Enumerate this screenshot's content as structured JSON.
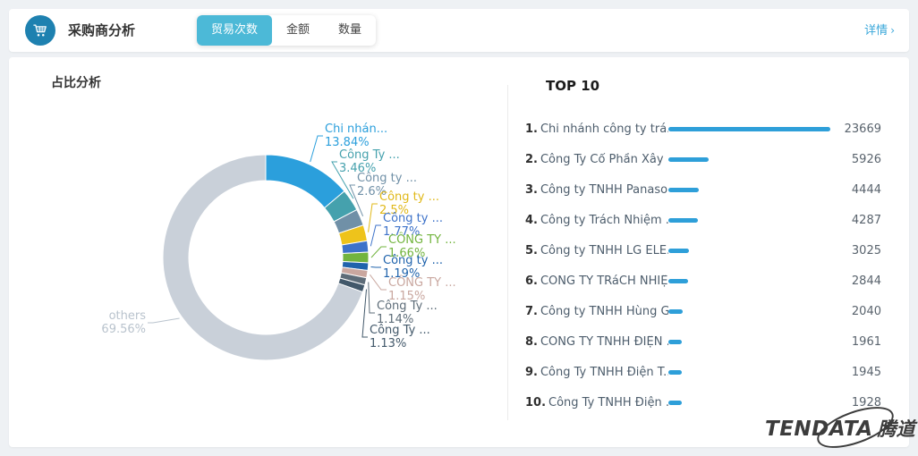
{
  "header": {
    "title": "采购商分析",
    "tabs": [
      {
        "label": "贸易次数",
        "active": true
      },
      {
        "label": "金额",
        "active": false
      },
      {
        "label": "数量",
        "active": false
      }
    ],
    "detail_link": "详情",
    "chevron": "›"
  },
  "left_panel": {
    "title": "占比分析"
  },
  "colors": {
    "accent_blue": "#2e9fd9",
    "tab_active_bg": "#4cb9d7",
    "icon_circle_bg": "#1e81b0",
    "detail_link": "#39a7da",
    "bar": "#2e9fd9"
  },
  "chart_data": {
    "type": "pie",
    "title": "占比分析",
    "legend_position": "callout-labels",
    "unit": "percent of trade count",
    "slices": [
      {
        "label": "Chi nhán...",
        "pct": 13.84,
        "display": "13.84%",
        "color": "#2b9fdc"
      },
      {
        "label": "Công Ty ...",
        "pct": 3.46,
        "display": "3.46%",
        "color": "#45a1ad"
      },
      {
        "label": "Công ty ...",
        "pct": 2.6,
        "display": "2.6%",
        "color": "#7090a7"
      },
      {
        "label": "Công ty ...",
        "pct": 2.5,
        "display": "2.5%",
        "color": "#eec31b",
        "text_color": "#e0b818"
      },
      {
        "label": "Công ty ...",
        "pct": 1.77,
        "display": "1.77%",
        "color": "#3d72c9"
      },
      {
        "label": "CÔNG TY ...",
        "pct": 1.66,
        "display": "1.66%",
        "color": "#72b43e"
      },
      {
        "label": "Công ty ...",
        "pct": 1.19,
        "display": "1.19%",
        "color": "#1f63ac"
      },
      {
        "label": "CÔNG TY ...",
        "pct": 1.15,
        "display": "1.15%",
        "color": "#c9a79f"
      },
      {
        "label": "Công Ty ...",
        "pct": 1.14,
        "display": "1.14%",
        "color": "#5d6c78"
      },
      {
        "label": "Công Ty ...",
        "pct": 1.13,
        "display": "1.13%",
        "color": "#42586a"
      },
      {
        "label": "others",
        "pct": 69.56,
        "display": "69.56%",
        "color": "#c9d0d9",
        "text_color": "#b9c3cd"
      }
    ]
  },
  "top10": {
    "title": "TOP 10",
    "max_value": 23669,
    "rows": [
      {
        "rank": "1.",
        "name": "Chi nhánh công ty trá...",
        "value": 23669
      },
      {
        "rank": "2.",
        "name": "Công Ty Cổ Phần Xây ...",
        "value": 5926
      },
      {
        "rank": "3.",
        "name": "Công ty TNHH Panaso...",
        "value": 4444
      },
      {
        "rank": "4.",
        "name": "Công ty Trách Nhiệm ...",
        "value": 4287
      },
      {
        "rank": "5.",
        "name": "Công ty TNHH LG ELE...",
        "value": 3025
      },
      {
        "rank": "6.",
        "name": "CÔNG TY TRáCH NHIỆ...",
        "value": 2844
      },
      {
        "rank": "7.",
        "name": "Công ty TNHH Hùng Gia",
        "value": 2040
      },
      {
        "rank": "8.",
        "name": "CÔNG TY TNHH ĐIỆN ...",
        "value": 1961
      },
      {
        "rank": "9.",
        "name": "Công Ty TNHH Điện T...",
        "value": 1945
      },
      {
        "rank": "10.",
        "name": "Công Ty TNHH Điện ...",
        "value": 1928
      }
    ]
  },
  "watermark": {
    "brand": "TENDATA",
    "cn": "腾道"
  }
}
